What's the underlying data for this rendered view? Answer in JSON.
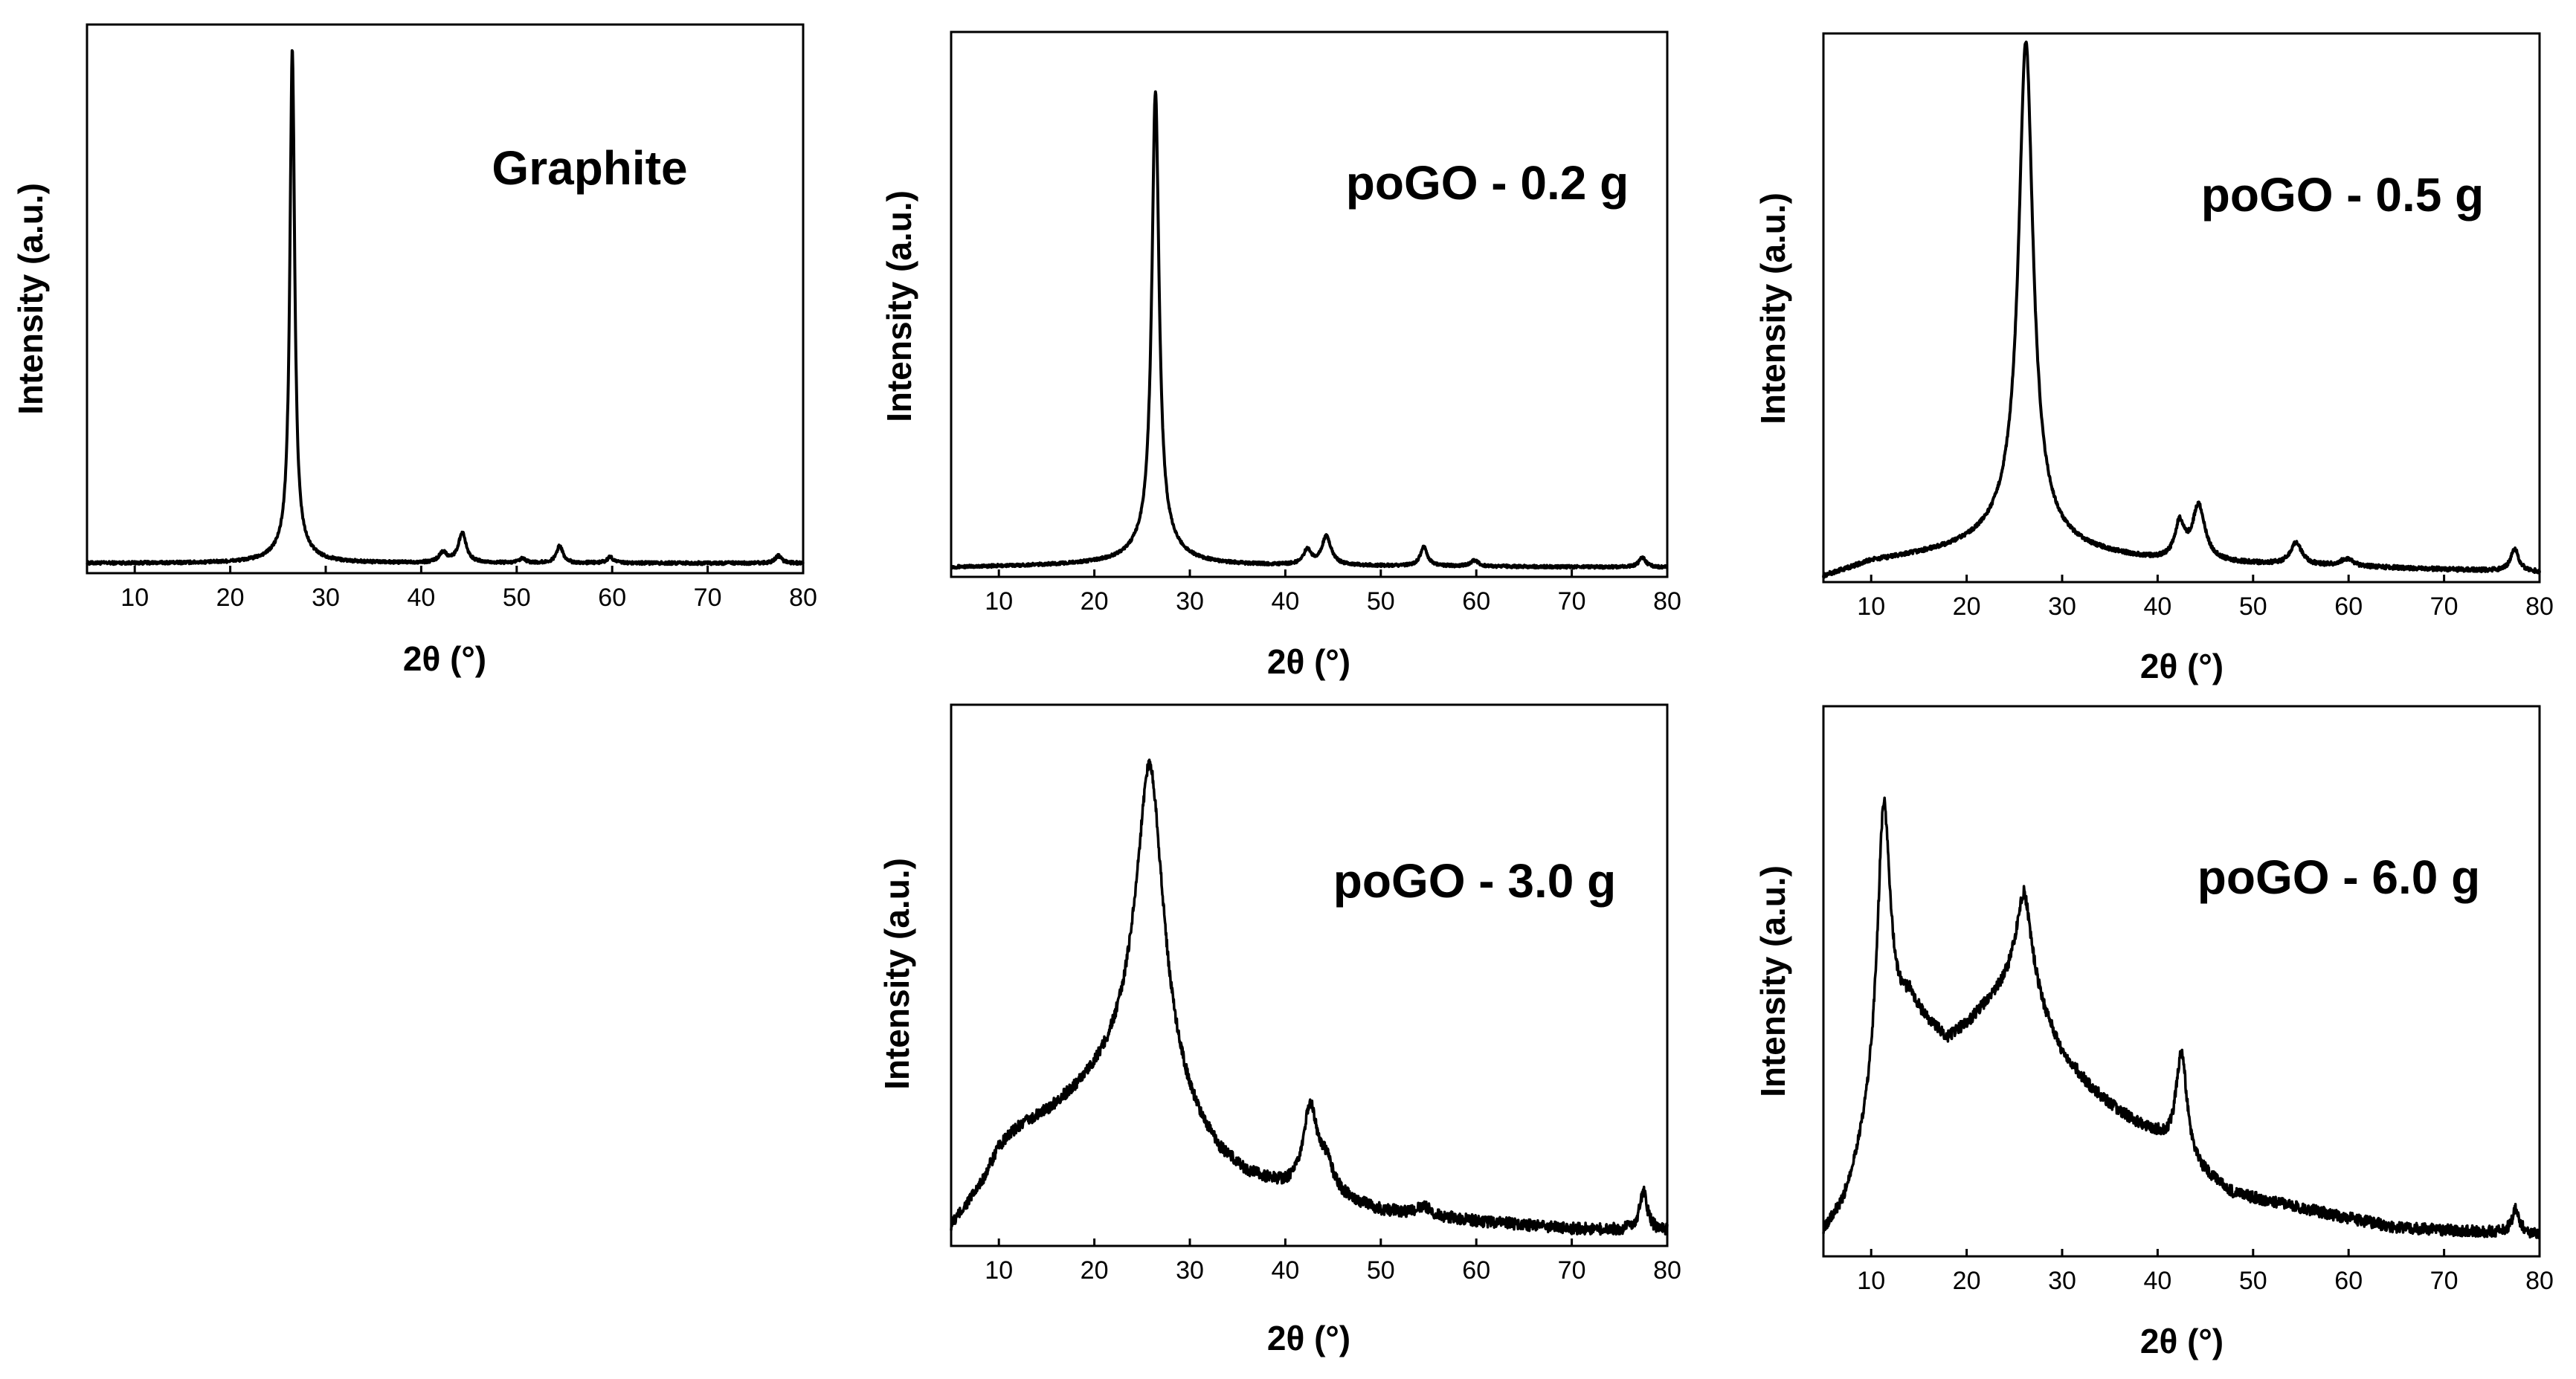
{
  "chart_data": [
    {
      "type": "line",
      "title": "Graphite",
      "xlabel": "2θ (°)",
      "ylabel": "Intensity (a.u.)",
      "xlim": [
        5,
        80
      ],
      "ylim": [
        0,
        1.1
      ],
      "xticks": [
        10,
        20,
        30,
        40,
        50,
        60,
        70,
        80
      ],
      "yticks": [],
      "grid": false,
      "noise": 0.003,
      "series": [
        {
          "name": "Graphite",
          "baseline": [
            [
              5,
              0.02
            ],
            [
              20,
              0.02
            ],
            [
              80,
              0.02
            ]
          ],
          "peaks": [
            {
              "x": 26.5,
              "h": 1.0,
              "w": 0.3
            },
            {
              "x": 26.5,
              "h": 0.03,
              "w": 2.0
            },
            {
              "x": 42.3,
              "h": 0.02,
              "w": 0.5
            },
            {
              "x": 44.3,
              "h": 0.06,
              "w": 0.5
            },
            {
              "x": 50.6,
              "h": 0.008,
              "w": 0.4
            },
            {
              "x": 54.5,
              "h": 0.035,
              "w": 0.4
            },
            {
              "x": 59.8,
              "h": 0.012,
              "w": 0.4
            },
            {
              "x": 77.4,
              "h": 0.015,
              "w": 0.4
            }
          ]
        }
      ]
    },
    {
      "type": "line",
      "title": "poGO - 0.2 g",
      "xlabel": "2θ (°)",
      "ylabel": "Intensity (a.u.)",
      "xlim": [
        5,
        80
      ],
      "ylim": [
        0,
        1.15
      ],
      "xticks": [
        10,
        20,
        30,
        40,
        50,
        60,
        70,
        80
      ],
      "yticks": [],
      "grid": false,
      "noise": 0.003,
      "series": [
        {
          "name": "poGO - 0.2 g",
          "baseline": [
            [
              5,
              0.02
            ],
            [
              20,
              0.025
            ],
            [
              80,
              0.02
            ]
          ],
          "peaks": [
            {
              "x": 26.4,
              "h": 0.95,
              "w": 0.45
            },
            {
              "x": 26.4,
              "h": 0.05,
              "w": 2.5
            },
            {
              "x": 42.3,
              "h": 0.03,
              "w": 0.5
            },
            {
              "x": 44.3,
              "h": 0.06,
              "w": 0.6
            },
            {
              "x": 54.5,
              "h": 0.04,
              "w": 0.45
            },
            {
              "x": 59.8,
              "h": 0.012,
              "w": 0.5
            },
            {
              "x": 77.4,
              "h": 0.02,
              "w": 0.45
            }
          ]
        }
      ]
    },
    {
      "type": "line",
      "title": "poGO - 0.5 g",
      "xlabel": "2θ (°)",
      "ylabel": "Intensity (a.u.)",
      "xlim": [
        5,
        80
      ],
      "ylim": [
        0,
        1.1
      ],
      "xticks": [
        10,
        20,
        30,
        40,
        50,
        60,
        70,
        80
      ],
      "yticks": [],
      "grid": false,
      "noise": 0.004,
      "series": [
        {
          "name": "poGO - 0.5 g",
          "baseline": [
            [
              5,
              0.01
            ],
            [
              10,
              0.04
            ],
            [
              18,
              0.06
            ],
            [
              24,
              0.08
            ],
            [
              30,
              0.06
            ],
            [
              40,
              0.04
            ],
            [
              80,
              0.02
            ]
          ],
          "peaks": [
            {
              "x": 26.2,
              "h": 0.95,
              "w": 0.9
            },
            {
              "x": 26.2,
              "h": 0.06,
              "w": 3.0
            },
            {
              "x": 42.3,
              "h": 0.07,
              "w": 0.6
            },
            {
              "x": 44.3,
              "h": 0.11,
              "w": 0.8
            },
            {
              "x": 54.5,
              "h": 0.045,
              "w": 0.7
            },
            {
              "x": 59.8,
              "h": 0.015,
              "w": 0.8
            },
            {
              "x": 77.4,
              "h": 0.045,
              "w": 0.5
            }
          ]
        }
      ]
    },
    {
      "type": "line",
      "title": "poGO - 3.0 g",
      "xlabel": "2θ (°)",
      "ylabel": "Intensity (a.u.)",
      "xlim": [
        5,
        80
      ],
      "ylim": [
        0,
        1.12
      ],
      "xticks": [
        10,
        20,
        30,
        40,
        50,
        60,
        70,
        80
      ],
      "yticks": [],
      "grid": false,
      "noise": 0.012,
      "series": [
        {
          "name": "poGO - 3.0 g",
          "baseline": [
            [
              5,
              0.04
            ],
            [
              8,
              0.12
            ],
            [
              10,
              0.2
            ],
            [
              12,
              0.24
            ],
            [
              15,
              0.27
            ],
            [
              18,
              0.31
            ],
            [
              21,
              0.36
            ],
            [
              24,
              0.42
            ],
            [
              27,
              0.38
            ],
            [
              30,
              0.26
            ],
            [
              33,
              0.18
            ],
            [
              36,
              0.14
            ],
            [
              39,
              0.12
            ],
            [
              42,
              0.1
            ],
            [
              46,
              0.09
            ],
            [
              50,
              0.07
            ],
            [
              55,
              0.06
            ],
            [
              60,
              0.05
            ],
            [
              70,
              0.035
            ],
            [
              80,
              0.03
            ]
          ],
          "peaks": [
            {
              "x": 25.8,
              "h": 0.6,
              "w": 1.6
            },
            {
              "x": 42.6,
              "h": 0.18,
              "w": 0.9
            },
            {
              "x": 44.3,
              "h": 0.06,
              "w": 0.9
            },
            {
              "x": 54.5,
              "h": 0.02,
              "w": 0.8
            },
            {
              "x": 77.5,
              "h": 0.08,
              "w": 0.5
            }
          ]
        }
      ]
    },
    {
      "type": "line",
      "title": "poGO - 6.0 g",
      "xlabel": "2θ (°)",
      "ylabel": "Intensity (a.u.)",
      "xlim": [
        5,
        80
      ],
      "ylim": [
        0,
        1.15
      ],
      "xticks": [
        10,
        20,
        30,
        40,
        50,
        60,
        70,
        80
      ],
      "yticks": [],
      "grid": false,
      "noise": 0.012,
      "series": [
        {
          "name": "poGO - 6.0 g",
          "baseline": [
            [
              5,
              0.05
            ],
            [
              7,
              0.1
            ],
            [
              9,
              0.22
            ],
            [
              12,
              0.45
            ],
            [
              14,
              0.52
            ],
            [
              16,
              0.48
            ],
            [
              18,
              0.45
            ],
            [
              20,
              0.48
            ],
            [
              22,
              0.52
            ],
            [
              24,
              0.56
            ],
            [
              26,
              0.6
            ],
            [
              28,
              0.5
            ],
            [
              30,
              0.42
            ],
            [
              33,
              0.35
            ],
            [
              36,
              0.3
            ],
            [
              40,
              0.25
            ],
            [
              44,
              0.18
            ],
            [
              48,
              0.13
            ],
            [
              55,
              0.1
            ],
            [
              65,
              0.06
            ],
            [
              80,
              0.045
            ]
          ],
          "peaks": [
            {
              "x": 11.3,
              "h": 0.55,
              "w": 0.8
            },
            {
              "x": 26.0,
              "h": 0.16,
              "w": 1.0
            },
            {
              "x": 42.5,
              "h": 0.22,
              "w": 0.7
            },
            {
              "x": 77.5,
              "h": 0.05,
              "w": 0.5
            }
          ]
        }
      ]
    }
  ]
}
